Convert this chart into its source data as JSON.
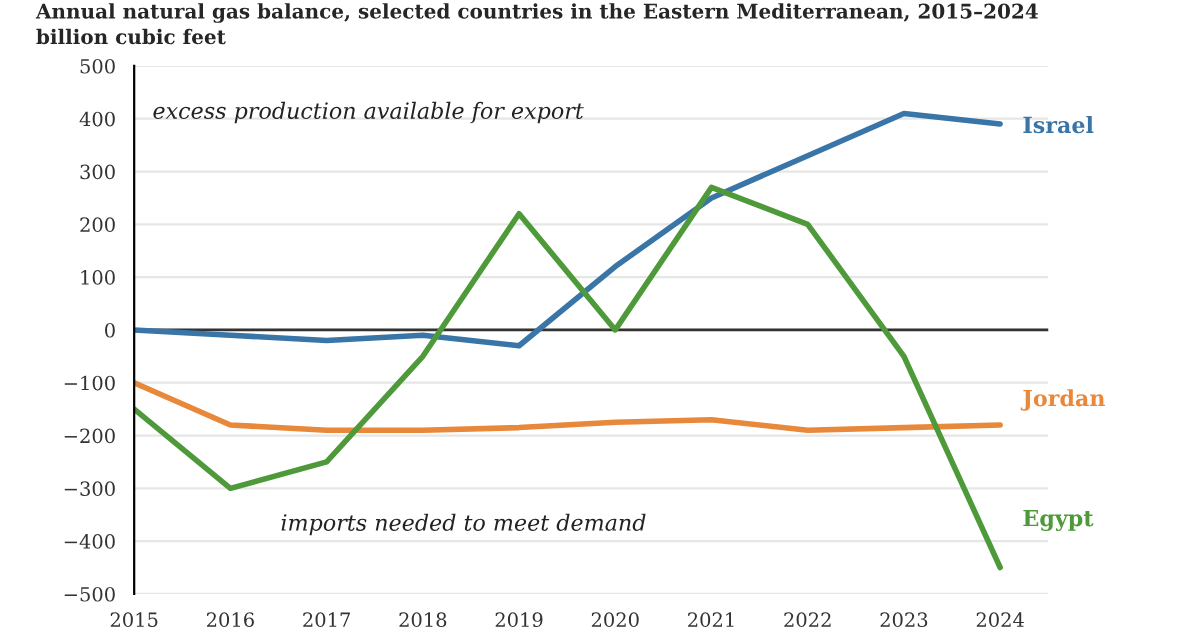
{
  "chart_data": {
    "type": "line",
    "title": "Annual natural gas balance, selected countries in the Eastern Mediterranean, 2015–2024",
    "subtitle": "billion cubic feet",
    "x": [
      2015,
      2016,
      2017,
      2018,
      2019,
      2020,
      2021,
      2022,
      2023,
      2024
    ],
    "series": [
      {
        "name": "Israel",
        "color": "#3a75a8",
        "values": [
          0,
          -10,
          -20,
          -10,
          -30,
          120,
          250,
          330,
          410,
          390
        ]
      },
      {
        "name": "Jordan",
        "color": "#e8883a",
        "values": [
          -100,
          -180,
          -190,
          -190,
          -185,
          -175,
          -170,
          -190,
          -185,
          -180
        ]
      },
      {
        "name": "Egypt",
        "color": "#4e9a3a",
        "values": [
          -150,
          -300,
          -250,
          -50,
          220,
          0,
          270,
          200,
          -50,
          -450
        ]
      }
    ],
    "annotations": [
      "excess production available for export",
      "imports needed to meet demand"
    ],
    "xlim": [
      2015,
      2024.5
    ],
    "xticks": [
      2015,
      2016,
      2017,
      2018,
      2019,
      2020,
      2021,
      2022,
      2023,
      2024
    ],
    "ylim": [
      -500,
      500
    ],
    "yticks": [
      {
        "value": -500,
        "label": "−500"
      },
      {
        "value": -400,
        "label": "−400"
      },
      {
        "value": -300,
        "label": "−300"
      },
      {
        "value": -200,
        "label": "−200"
      },
      {
        "value": -100,
        "label": "−100"
      },
      0,
      100,
      200,
      300,
      400,
      500
    ],
    "ref_lines": [
      {
        "axis": "y",
        "value": 0,
        "color": "#333333"
      }
    ],
    "grid": "y",
    "legend": false,
    "line_style": "solid",
    "marker": "none"
  }
}
